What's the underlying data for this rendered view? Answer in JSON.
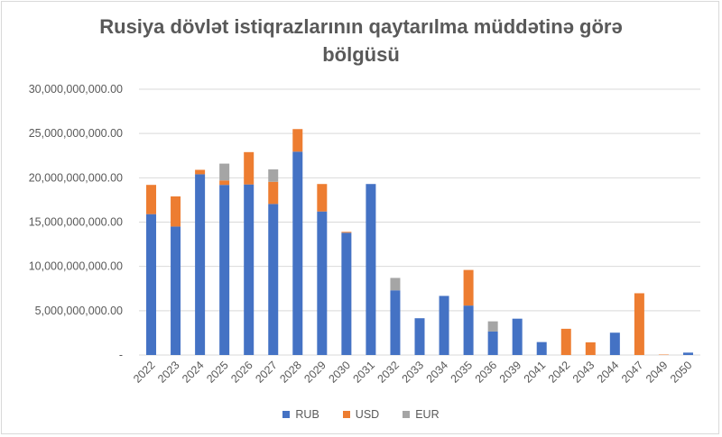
{
  "chart_data": {
    "type": "stacked-bar",
    "title": "Rusiya dövlət istiqrazlarının qaytarılma müddətinə görə bölgüsü",
    "title_lines": [
      "Rusiya dövlət istiqrazlarının qaytarılma müddətinə görə",
      "bölgüsü"
    ],
    "xlabel": "",
    "ylabel": "",
    "ylim": [
      0,
      30000000000
    ],
    "yticks": [
      0,
      5000000000,
      10000000000,
      15000000000,
      20000000000,
      25000000000,
      30000000000
    ],
    "ytick_labels": [
      "-",
      "5,000,000,000.00",
      "10,000,000,000.00",
      "15,000,000,000.00",
      "20,000,000,000.00",
      "25,000,000,000.00",
      "30,000,000,000.00"
    ],
    "grid": true,
    "legend_position": "bottom",
    "categories": [
      "2022",
      "2023",
      "2024",
      "2025",
      "2026",
      "2027",
      "2028",
      "2029",
      "2030",
      "2031",
      "2032",
      "2033",
      "2034",
      "2035",
      "2036",
      "2039",
      "2041",
      "2042",
      "2043",
      "2044",
      "2047",
      "2049",
      "2050"
    ],
    "series": [
      {
        "name": "RUB",
        "color": "#4472C4",
        "values": [
          15900000000,
          14500000000,
          20400000000,
          19200000000,
          19250000000,
          17050000000,
          22950000000,
          16200000000,
          13800000000,
          19300000000,
          7300000000,
          4150000000,
          6670000000,
          5580000000,
          2650000000,
          4100000000,
          1460000000,
          0,
          0,
          2520000000,
          0,
          0,
          270000000
        ]
      },
      {
        "name": "USD",
        "color": "#ED7D31",
        "values": [
          3300000000,
          3400000000,
          500000000,
          500000000,
          3650000000,
          2500000000,
          2550000000,
          3100000000,
          100000000,
          0,
          0,
          0,
          0,
          4020000000,
          0,
          0,
          0,
          2960000000,
          1430000000,
          0,
          6970000000,
          50000000,
          0
        ]
      },
      {
        "name": "EUR",
        "color": "#A5A5A5",
        "values": [
          0,
          0,
          0,
          1900000000,
          0,
          1400000000,
          0,
          0,
          0,
          0,
          1400000000,
          0,
          0,
          0,
          1150000000,
          0,
          0,
          0,
          0,
          0,
          0,
          0,
          0
        ]
      }
    ]
  }
}
